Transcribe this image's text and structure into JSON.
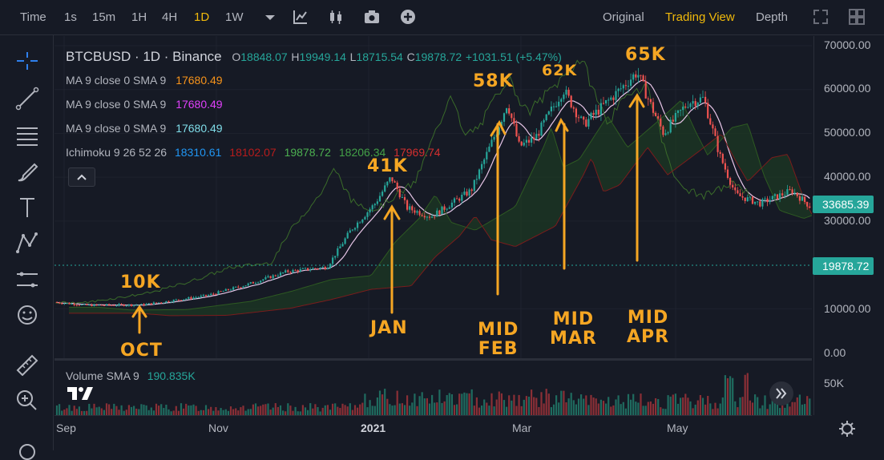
{
  "toolbar": {
    "time": "Time",
    "intervals": [
      "1s",
      "15m",
      "1H",
      "4H",
      "1D",
      "1W"
    ],
    "active_interval": "1D",
    "views": [
      "Original",
      "Trading View",
      "Depth"
    ],
    "active_view": "Trading View"
  },
  "legend": {
    "symbol": "BTCBUSD · 1D · Binance",
    "o_label": "O",
    "o": "18848.07",
    "h_label": "H",
    "h": "19949.14",
    "l_label": "L",
    "l": "18715.54",
    "c_label": "C",
    "c": "19878.72",
    "change": "+1031.51 (+5.47%)",
    "ma": [
      {
        "label": "MA 9 close 0 SMA 9",
        "value": "17680.49",
        "color": "#f7931a"
      },
      {
        "label": "MA 9 close 0 SMA 9",
        "value": "17680.49",
        "color": "#e040fb"
      },
      {
        "label": "MA 9 close 0 SMA 9",
        "value": "17680.49",
        "color": "#80deea"
      }
    ],
    "ichimoku_label": "Ichimoku 9 26 52 26",
    "ichimoku_values": [
      {
        "value": "18310.61",
        "color": "#2196f3"
      },
      {
        "value": "18102.07",
        "color": "#b71c1c"
      },
      {
        "value": "19878.72",
        "color": "#4caf50"
      },
      {
        "value": "18206.34",
        "color": "#43a047"
      },
      {
        "value": "17969.74",
        "color": "#d32f2f"
      }
    ]
  },
  "price_axis": [
    "70000.00",
    "60000.00",
    "50000.00",
    "40000.00",
    "30000.00",
    "10000.00",
    "0.00"
  ],
  "price_tags": [
    {
      "value": "33685.39",
      "color": "#26a69a"
    },
    {
      "value": "19878.72",
      "color": "#26a69a"
    }
  ],
  "volume": {
    "label": "Volume SMA 9",
    "value": "190.835K",
    "axis": "50K"
  },
  "time_axis": [
    "Sep",
    "Nov",
    "2021",
    "Mar",
    "May"
  ],
  "annotations": {
    "10k": "10K",
    "oct": "OCT",
    "41k": "41K",
    "jan": "JAN",
    "58k": "58K",
    "mid_feb": "MID\nFEB",
    "62k": "62K",
    "mid_mar": "MID\nMAR",
    "65k": "65K",
    "mid_apr": "MID\nAPR"
  },
  "colors": {
    "up": "#26a69a",
    "down": "#ef5350",
    "accent": "#f0b90b",
    "annotation": "#f5a623"
  }
}
